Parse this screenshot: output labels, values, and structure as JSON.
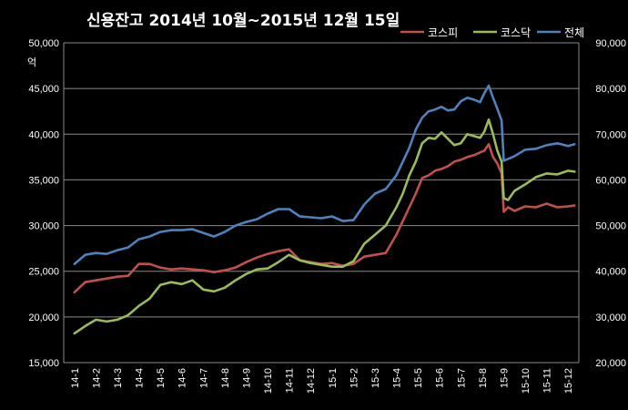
{
  "chart_data": {
    "type": "line",
    "title": "신용잔고  2014년 10월~2015년 12월 15일",
    "left_axis": {
      "unit": "억",
      "min": 15000,
      "max": 50000,
      "step": 5000,
      "tick_labels": [
        "15,000",
        "20,000",
        "25,000",
        "30,000",
        "35,000",
        "40,000",
        "45,000",
        "50,000"
      ]
    },
    "right_axis": {
      "min": 20000,
      "max": 90000,
      "step": 10000,
      "tick_labels": [
        "20,000",
        "30,000",
        "40,000",
        "50,000",
        "60,000",
        "70,000",
        "80,000",
        "90,000"
      ]
    },
    "categories": [
      "14-1",
      "14-2",
      "14-3",
      "14-4",
      "14-5",
      "14-6",
      "14-7",
      "14-8",
      "14-9",
      "14-10",
      "14-11",
      "14-12",
      "15-1",
      "15-2",
      "15-3",
      "15-4",
      "15-5",
      "15-6",
      "15-7",
      "15-8",
      "15-9",
      "15-10",
      "15-11",
      "15-12"
    ],
    "grid": true,
    "legend_position": "top-right",
    "series": [
      {
        "name": "코스피",
        "axis": "left",
        "color": "#c0504d",
        "x": [
          0,
          0.5,
          1,
          1.5,
          2,
          2.5,
          3,
          3.5,
          4,
          4.5,
          5,
          5.5,
          6,
          6.5,
          7,
          7.5,
          8,
          8.5,
          9,
          9.5,
          10,
          10.5,
          11,
          11.5,
          12,
          12.5,
          13,
          13.5,
          14,
          14.5,
          15,
          15.3,
          15.6,
          15.9,
          16.2,
          16.5,
          16.8,
          17.1,
          17.4,
          17.7,
          18,
          18.3,
          18.6,
          18.9,
          19.1,
          19.3,
          19.5,
          19.7,
          19.9,
          20,
          20.2,
          20.5,
          21,
          21.5,
          22,
          22.5,
          23,
          23.3
        ],
        "y": [
          22700,
          23800,
          24000,
          24200,
          24400,
          24500,
          25800,
          25800,
          25400,
          25200,
          25300,
          25200,
          25100,
          24900,
          25100,
          25400,
          26000,
          26500,
          26900,
          27200,
          27400,
          26200,
          26000,
          25800,
          25900,
          25600,
          25800,
          26600,
          26800,
          27000,
          29000,
          30500,
          32000,
          33500,
          35200,
          35500,
          36000,
          36200,
          36500,
          37000,
          37200,
          37500,
          37700,
          38000,
          38200,
          38900,
          37500,
          36800,
          35700,
          31500,
          32000,
          31600,
          32100,
          32000,
          32400,
          32000,
          32100,
          32200
        ]
      },
      {
        "name": "코스닥",
        "axis": "left",
        "color": "#9bbb59",
        "x": [
          0,
          0.5,
          1,
          1.5,
          2,
          2.5,
          3,
          3.5,
          4,
          4.5,
          5,
          5.5,
          6,
          6.5,
          7,
          7.5,
          8,
          8.5,
          9,
          9.5,
          10,
          10.5,
          11,
          11.5,
          12,
          12.5,
          13,
          13.5,
          14,
          14.5,
          15,
          15.3,
          15.6,
          15.9,
          16.2,
          16.5,
          16.8,
          17.1,
          17.4,
          17.7,
          18,
          18.3,
          18.6,
          18.9,
          19.1,
          19.3,
          19.5,
          19.7,
          19.9,
          20,
          20.2,
          20.5,
          21,
          21.5,
          22,
          22.5,
          23,
          23.3
        ],
        "y": [
          18200,
          19000,
          19700,
          19500,
          19700,
          20200,
          21200,
          22000,
          23500,
          23800,
          23600,
          24000,
          23000,
          22800,
          23200,
          24000,
          24700,
          25200,
          25300,
          26000,
          26800,
          26200,
          25900,
          25700,
          25500,
          25500,
          26100,
          28000,
          29000,
          30000,
          32000,
          33500,
          35500,
          37000,
          39000,
          39600,
          39500,
          40200,
          39500,
          38800,
          39000,
          40000,
          39800,
          39600,
          40300,
          41600,
          40000,
          38200,
          37000,
          33000,
          32800,
          33800,
          34500,
          35300,
          35700,
          35600,
          36000,
          35900
        ]
      },
      {
        "name": "전체",
        "axis": "left",
        "color": "#4f81bd",
        "x": [
          0,
          0.5,
          1,
          1.5,
          2,
          2.5,
          3,
          3.5,
          4,
          4.5,
          5,
          5.5,
          6,
          6.5,
          7,
          7.5,
          8,
          8.5,
          9,
          9.5,
          10,
          10.5,
          11,
          11.5,
          12,
          12.5,
          13,
          13.5,
          14,
          14.5,
          15,
          15.3,
          15.6,
          15.9,
          16.2,
          16.5,
          16.8,
          17.1,
          17.4,
          17.7,
          18,
          18.3,
          18.6,
          18.9,
          19.1,
          19.3,
          19.5,
          19.7,
          19.9,
          20,
          20.2,
          20.5,
          21,
          21.5,
          22,
          22.5,
          23,
          23.3
        ],
        "y": [
          25800,
          26800,
          27000,
          26900,
          27300,
          27600,
          28500,
          28800,
          29300,
          29500,
          29500,
          29600,
          29200,
          28800,
          29300,
          30000,
          30400,
          30700,
          31300,
          31800,
          31800,
          31000,
          30900,
          30800,
          31000,
          30500,
          30600,
          32300,
          33500,
          34000,
          35500,
          37000,
          38500,
          40500,
          41800,
          42500,
          42700,
          43000,
          42600,
          42700,
          43600,
          44000,
          43800,
          43500,
          44500,
          45300,
          44000,
          42800,
          41500,
          37100,
          37300,
          37600,
          38300,
          38400,
          38800,
          39000,
          38700,
          38900
        ]
      }
    ]
  }
}
